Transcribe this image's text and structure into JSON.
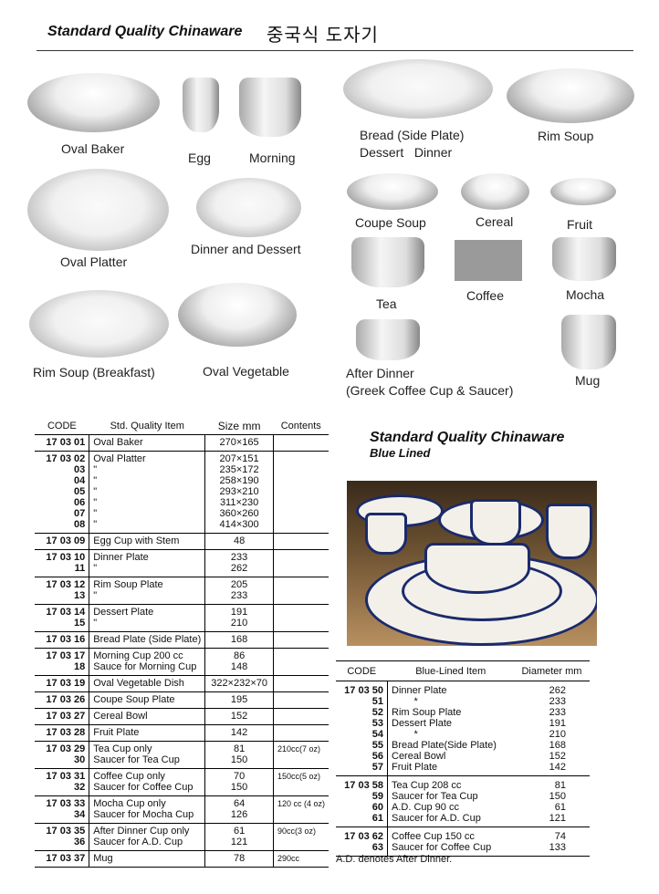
{
  "header": {
    "title": "Standard Quality Chinaware",
    "title_korean": "중국식 도자기"
  },
  "products": [
    {
      "label": "Oval Baker",
      "shape": "bowl"
    },
    {
      "label": "Egg",
      "shape": "cup"
    },
    {
      "label": "Morning",
      "shape": "cup"
    },
    {
      "label": "Bread (Side Plate)",
      "label2": "Dessert   Dinner",
      "shape": "plate"
    },
    {
      "label": "Rim Soup",
      "shape": "bowl"
    },
    {
      "label": "Dinner and Dessert",
      "shape": "plate"
    },
    {
      "label": "Oval Platter",
      "shape": "plate"
    },
    {
      "label": "Coupe Soup",
      "shape": "bowl"
    },
    {
      "label": "Cereal",
      "shape": "bowl"
    },
    {
      "label": "Fruit",
      "shape": "bowl"
    },
    {
      "label": "Tea",
      "shape": "cup"
    },
    {
      "label": "Coffee",
      "shape": "cup"
    },
    {
      "label": "Mocha",
      "shape": "cup"
    },
    {
      "label": "Rim Soup (Breakfast)",
      "shape": "plate"
    },
    {
      "label": "Oval Vegetable",
      "shape": "bowl"
    },
    {
      "label": "After Dinner",
      "label2": "(Greek Coffee Cup & Saucer)",
      "shape": "cup"
    },
    {
      "label": "Mug",
      "shape": "cup"
    }
  ],
  "std_table": {
    "headers": [
      "CODE",
      "Std. Quality Item",
      "Size mm",
      "Contents"
    ],
    "rows": [
      {
        "code": "17 03 01",
        "item": "Oval Baker",
        "size": "270×165",
        "contents": ""
      },
      {
        "code": "17 03 02\n03\n04\n05\n06\n07\n08",
        "item": "Oval Platter\n\"\n\"\n\"\n\"\n\"\n\"",
        "size": "207×151\n235×172\n258×190\n293×210\n311×230\n360×260\n414×300",
        "contents": ""
      },
      {
        "code": "17 03 09",
        "item": "Egg Cup with Stem",
        "size": "48",
        "contents": ""
      },
      {
        "code": "17 03 10\n11",
        "item": "Dinner Plate\n\"",
        "size": "233\n262",
        "contents": ""
      },
      {
        "code": "17 03 12\n13",
        "item": "Rim Soup Plate\n\"",
        "size": "205\n233",
        "contents": ""
      },
      {
        "code": "17 03 14\n15",
        "item": "Dessert Plate\n\"",
        "size": "191\n210",
        "contents": ""
      },
      {
        "code": "17 03 16",
        "item": "Bread Plate (Side Plate)",
        "size": "168",
        "contents": ""
      },
      {
        "code": "17 03 17\n18",
        "item": "Morning Cup 200 cc\nSauce for Morning Cup",
        "size": "86\n148",
        "contents": ""
      },
      {
        "code": "17 03 19",
        "item": "Oval Vegetable Dish",
        "size": "322×232×70",
        "contents": ""
      },
      {
        "code": "17 03 26",
        "item": "Coupe Soup Plate",
        "size": "195",
        "contents": ""
      },
      {
        "code": "17 03 27",
        "item": "Cereal Bowl",
        "size": "152",
        "contents": ""
      },
      {
        "code": "17 03 28",
        "item": "Fruit Plate",
        "size": "142",
        "contents": ""
      },
      {
        "code": "17 03 29\n30",
        "item": "Tea Cup only\nSaucer for Tea Cup",
        "size": "81\n150",
        "contents": "210cc(7 oz)"
      },
      {
        "code": "17 03 31\n32",
        "item": "Coffee Cup only\nSaucer for Coffee Cup",
        "size": "70\n150",
        "contents": "150cc(5 oz)"
      },
      {
        "code": "17 03 33\n34",
        "item": "Mocha Cup only\nSaucer for Mocha Cup",
        "size": "64\n126",
        "contents": "120 cc (4 oz)"
      },
      {
        "code": "17 03 35\n36",
        "item": "After Dinner Cup only\nSaucer for A.D. Cup",
        "size": "61\n121",
        "contents": "90cc(3 oz)"
      },
      {
        "code": "17 03 37",
        "item": "Mug",
        "size": "78",
        "contents": "290cc"
      }
    ]
  },
  "blue_lined": {
    "title": "Standard Quality Chinaware",
    "subtitle": "Blue Lined",
    "headers": [
      "CODE",
      "Blue-Lined Item",
      "Diameter mm"
    ],
    "rows": [
      {
        "code": "17 03 50\n51\n52\n53\n54\n55\n56\n57",
        "item": "Dinner Plate\n        *\nRim Soup Plate\nDessert Plate\n        *\nBread Plate(Side Plate)\nCereal Bowl\nFruit Plate",
        "size": "262\n233\n233\n191\n210\n168\n152\n142"
      },
      {
        "code": "17 03 58\n59\n60\n61",
        "item": "Tea Cup 208 cc\nSaucer for Tea Cup\nA.D. Cup 90 cc\nSaucer for A.D. Cup",
        "size": "81\n150\n61\n121"
      },
      {
        "code": "17 03 62\n63",
        "item": "Coffee Cup 150 cc\nSaucer for Coffee Cup",
        "size": "74\n133"
      }
    ],
    "note": "A.D. denotes After Dinner.",
    "accent": "#1a2a6a"
  }
}
